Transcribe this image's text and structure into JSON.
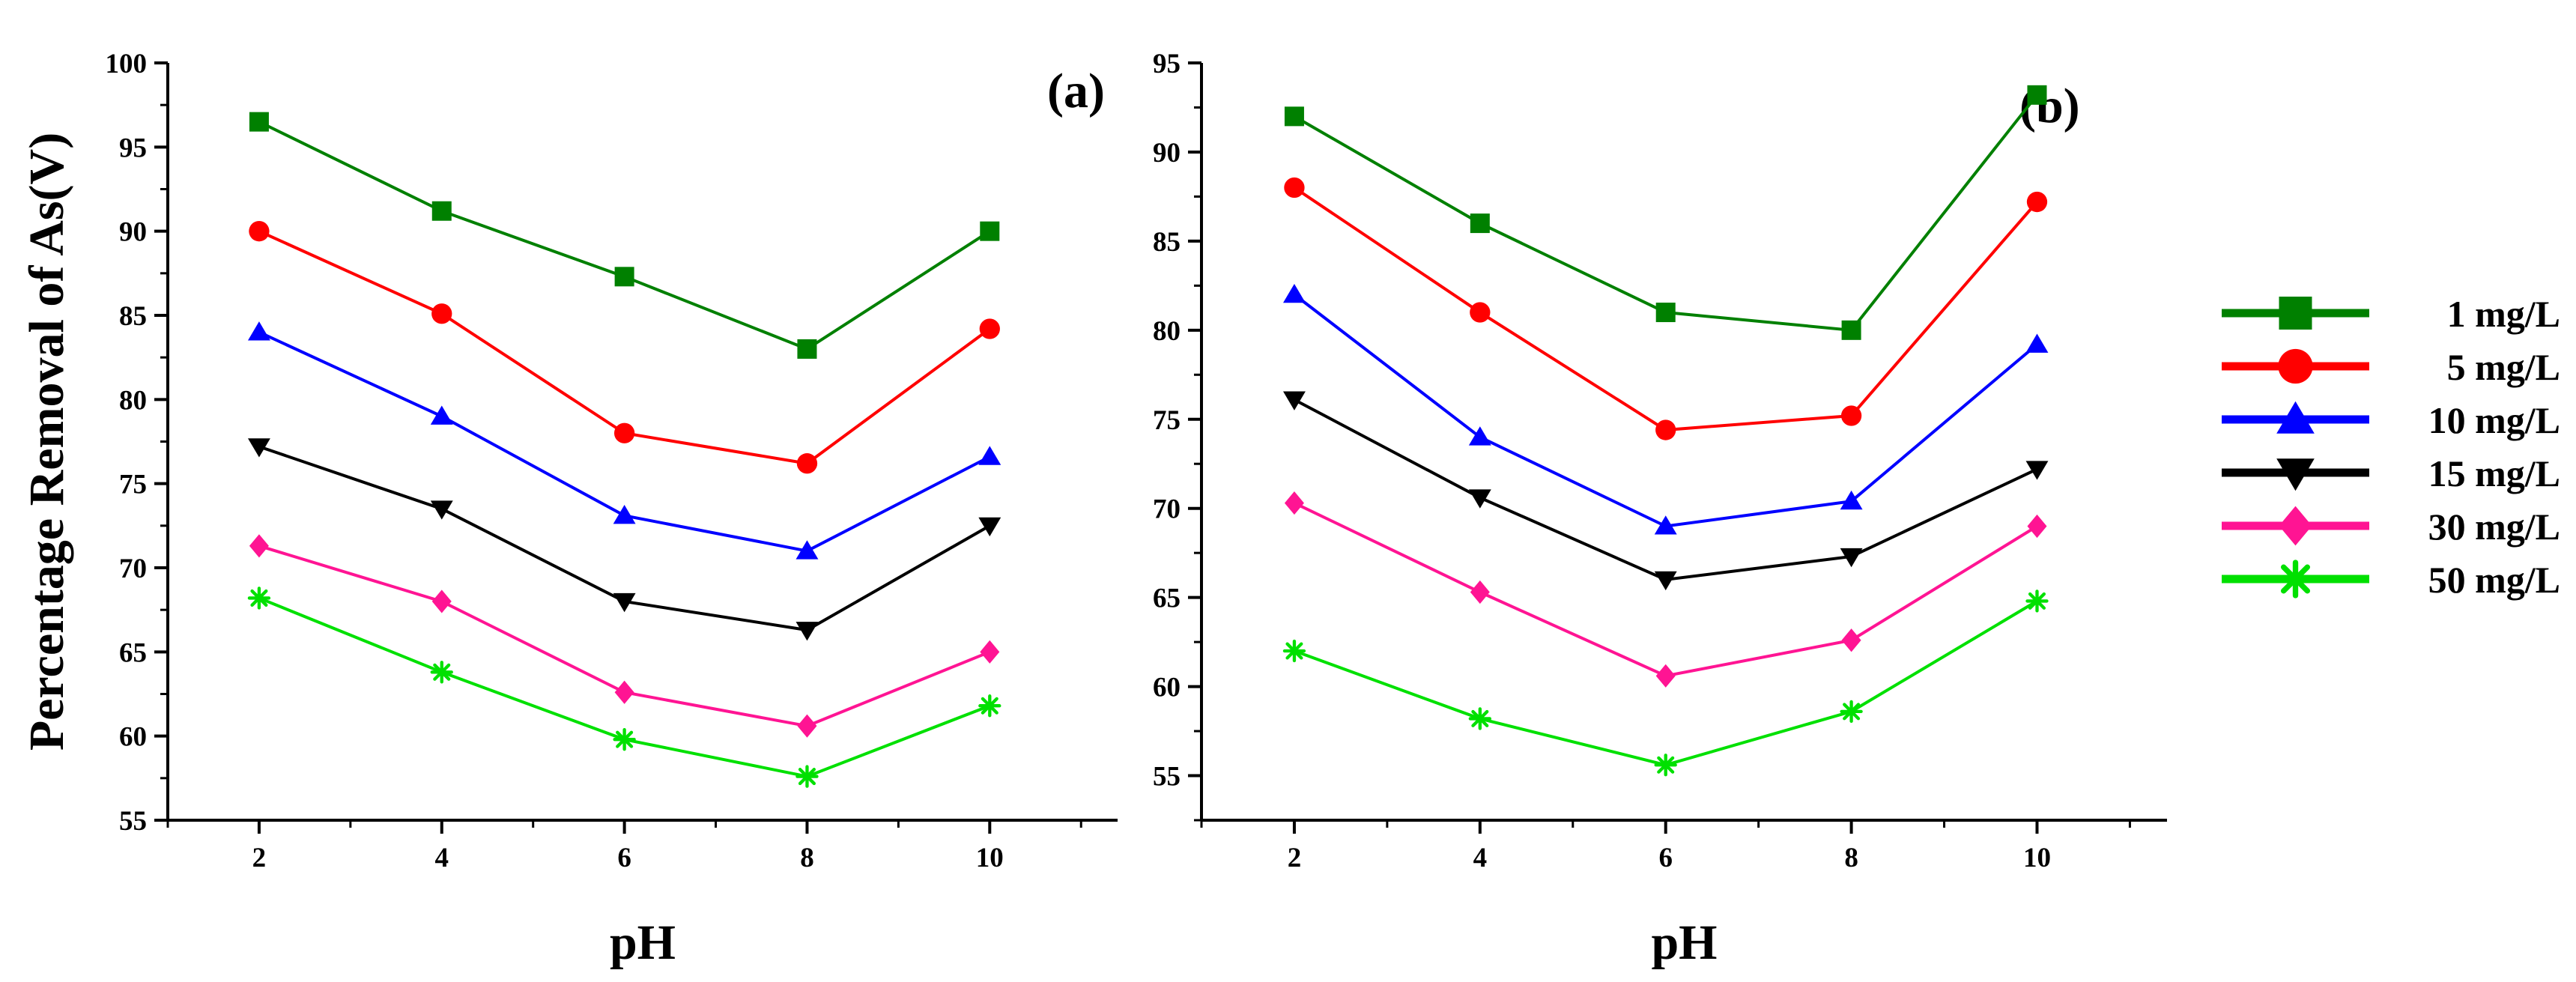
{
  "chart_data": [
    {
      "type": "line",
      "panel_label": "(a)",
      "xlabel": "pH",
      "ylabel": "Percentage Removal  of As(V)",
      "x": [
        2,
        4,
        6,
        8,
        10
      ],
      "xticks": [
        "2",
        "4",
        "6",
        "8",
        "10"
      ],
      "xlim": [
        1,
        11.4
      ],
      "ylim": [
        55,
        100
      ],
      "yticks": [
        "55",
        "60",
        "65",
        "70",
        "75",
        "80",
        "85",
        "90",
        "95",
        "100"
      ],
      "series": [
        {
          "name": "1 mg/L",
          "color": "#008000",
          "marker": "square",
          "values": [
            96.5,
            91.2,
            87.3,
            83.0,
            90.0
          ]
        },
        {
          "name": "5 mg/L",
          "color": "#ff0000",
          "marker": "circle",
          "values": [
            90.0,
            85.1,
            78.0,
            76.2,
            84.2
          ]
        },
        {
          "name": "10 mg/L",
          "color": "#0000ff",
          "marker": "triangle-up",
          "values": [
            84.0,
            79.0,
            73.1,
            71.0,
            76.6
          ]
        },
        {
          "name": "15 mg/L",
          "color": "#000000",
          "marker": "triangle-down",
          "values": [
            77.2,
            73.5,
            68.0,
            66.3,
            72.5
          ]
        },
        {
          "name": "30 mg/L",
          "color": "#ff1493",
          "marker": "diamond",
          "values": [
            71.3,
            68.0,
            62.6,
            60.6,
            65.0
          ]
        },
        {
          "name": "50 mg/L",
          "color": "#00e000",
          "marker": "star",
          "values": [
            68.2,
            63.8,
            59.8,
            57.6,
            61.8
          ]
        }
      ]
    },
    {
      "type": "line",
      "panel_label": "(b)",
      "xlabel": "pH",
      "ylabel": "",
      "x": [
        2,
        4,
        6,
        8,
        10
      ],
      "xticks": [
        "2",
        "4",
        "6",
        "8",
        "10"
      ],
      "xlim": [
        1,
        11.4
      ],
      "ylim": [
        52.5,
        95
      ],
      "yticks": [
        "55",
        "60",
        "65",
        "70",
        "75",
        "80",
        "85",
        "90",
        "95"
      ],
      "series": [
        {
          "name": "1 mg/L",
          "color": "#008000",
          "marker": "square",
          "values": [
            92.0,
            86.0,
            81.0,
            80.0,
            93.2
          ]
        },
        {
          "name": "5 mg/L",
          "color": "#ff0000",
          "marker": "circle",
          "values": [
            88.0,
            81.0,
            74.4,
            75.2,
            87.2
          ]
        },
        {
          "name": "10 mg/L",
          "color": "#0000ff",
          "marker": "triangle-up",
          "values": [
            82.0,
            74.0,
            69.0,
            70.4,
            79.2
          ]
        },
        {
          "name": "15 mg/L",
          "color": "#000000",
          "marker": "triangle-down",
          "values": [
            76.1,
            70.6,
            66.0,
            67.3,
            72.2
          ]
        },
        {
          "name": "30 mg/L",
          "color": "#ff1493",
          "marker": "diamond",
          "values": [
            70.3,
            65.3,
            60.6,
            62.6,
            69.0
          ]
        },
        {
          "name": "50 mg/L",
          "color": "#00e000",
          "marker": "star",
          "values": [
            62.0,
            58.2,
            55.6,
            58.6,
            64.8
          ]
        }
      ]
    }
  ],
  "legend": {
    "position": "right",
    "entries": [
      {
        "label": "1 mg/L",
        "color": "#008000",
        "marker": "square"
      },
      {
        "label": "5 mg/L",
        "color": "#ff0000",
        "marker": "circle"
      },
      {
        "label": "10 mg/L",
        "color": "#0000ff",
        "marker": "triangle-up"
      },
      {
        "label": "15 mg/L",
        "color": "#000000",
        "marker": "triangle-down"
      },
      {
        "label": "30 mg/L",
        "color": "#ff1493",
        "marker": "diamond"
      },
      {
        "label": "50 mg/L",
        "color": "#00e000",
        "marker": "star"
      }
    ]
  }
}
